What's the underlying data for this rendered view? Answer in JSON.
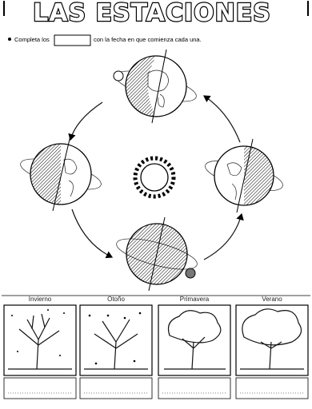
{
  "header": {
    "title": "LAS ESTACIONES"
  },
  "instruction": {
    "before_box": "Completa los",
    "after_box": "con la fecha en que comienza cada una."
  },
  "seasons": [
    {
      "label": "Invierno"
    },
    {
      "label": "Otoño"
    },
    {
      "label": "Primavera"
    },
    {
      "label": "Verano"
    }
  ]
}
